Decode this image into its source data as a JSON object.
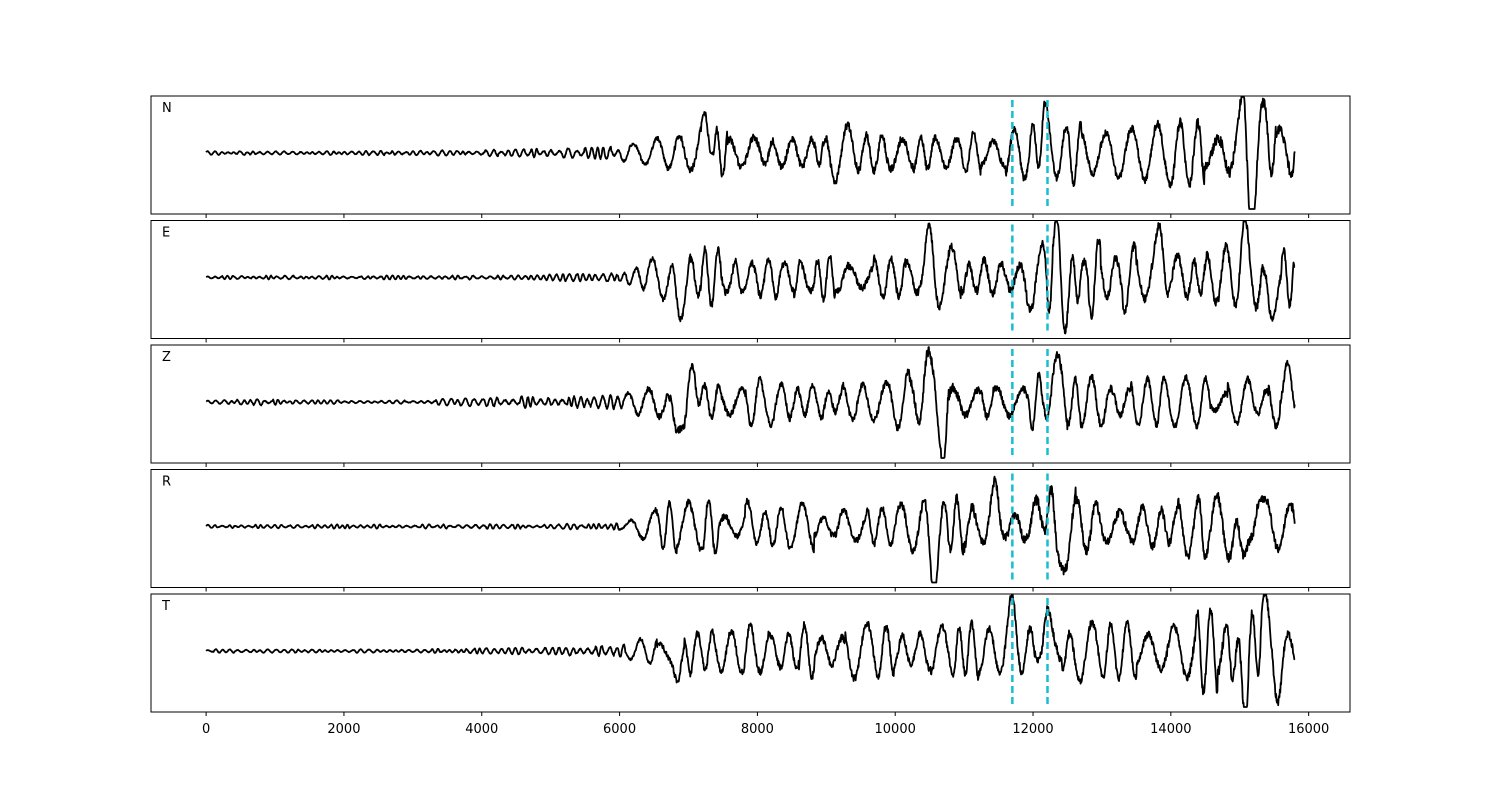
{
  "chart_data": {
    "type": "line",
    "title": "",
    "xlabel": "",
    "ylabel": "",
    "xlim": [
      -800,
      16600
    ],
    "x_ticks": [
      0,
      2000,
      4000,
      6000,
      8000,
      10000,
      12000,
      14000,
      16000
    ],
    "x_tick_labels": [
      "0",
      "2000",
      "4000",
      "6000",
      "8000",
      "10000",
      "12000",
      "14000",
      "16000"
    ],
    "samples": 15800,
    "grid": false,
    "legend": "none",
    "trace_color": "#000000",
    "pick_color": "#17becf",
    "picks": [
      11700,
      12210
    ],
    "panels": [
      {
        "label": "N",
        "envelope": [
          [
            0,
            0.03
          ],
          [
            3000,
            0.035
          ],
          [
            5000,
            0.07
          ],
          [
            6000,
            0.11
          ],
          [
            6500,
            0.3
          ],
          [
            7000,
            0.45
          ],
          [
            8000,
            0.5
          ],
          [
            10000,
            0.55
          ],
          [
            11500,
            0.45
          ],
          [
            12200,
            0.55
          ],
          [
            13500,
            0.5
          ],
          [
            15000,
            0.8
          ],
          [
            15800,
            0.6
          ]
        ],
        "peaks": [
          [
            7250,
            0.63
          ],
          [
            12150,
            0.6
          ],
          [
            15050,
            0.8
          ],
          [
            15200,
            -0.88
          ],
          [
            15400,
            0.63
          ]
        ]
      },
      {
        "label": "E",
        "envelope": [
          [
            0,
            0.03
          ],
          [
            3000,
            0.035
          ],
          [
            5000,
            0.05
          ],
          [
            6000,
            0.1
          ],
          [
            6500,
            0.35
          ],
          [
            7000,
            0.5
          ],
          [
            8000,
            0.45
          ],
          [
            10000,
            0.5
          ],
          [
            11000,
            0.6
          ],
          [
            11700,
            0.6
          ],
          [
            12300,
            0.7
          ],
          [
            14000,
            0.55
          ],
          [
            15000,
            0.6
          ],
          [
            15800,
            0.55
          ]
        ],
        "peaks": [
          [
            6850,
            -0.62
          ],
          [
            10500,
            0.72
          ],
          [
            12350,
            0.88
          ],
          [
            12450,
            -0.75
          ],
          [
            13850,
            0.8
          ],
          [
            15050,
            0.65
          ],
          [
            15450,
            -0.7
          ]
        ]
      },
      {
        "label": "Z",
        "envelope": [
          [
            0,
            0.03
          ],
          [
            900,
            0.06
          ],
          [
            1200,
            0.03
          ],
          [
            3000,
            0.03
          ],
          [
            3800,
            0.07
          ],
          [
            5000,
            0.1
          ],
          [
            6000,
            0.12
          ],
          [
            6500,
            0.45
          ],
          [
            7000,
            0.5
          ],
          [
            8000,
            0.42
          ],
          [
            10000,
            0.45
          ],
          [
            10500,
            0.8
          ],
          [
            11000,
            0.55
          ],
          [
            12000,
            0.5
          ],
          [
            12300,
            0.6
          ],
          [
            14000,
            0.4
          ],
          [
            15800,
            0.45
          ]
        ],
        "peaks": [
          [
            6800,
            -0.62
          ],
          [
            7100,
            0.52
          ],
          [
            10450,
            0.9
          ],
          [
            10650,
            -0.8
          ],
          [
            12300,
            0.68
          ],
          [
            15700,
            0.55
          ]
        ]
      },
      {
        "label": "R",
        "envelope": [
          [
            0,
            0.03
          ],
          [
            3000,
            0.035
          ],
          [
            5000,
            0.04
          ],
          [
            6000,
            0.07
          ],
          [
            6500,
            0.35
          ],
          [
            7000,
            0.5
          ],
          [
            8000,
            0.42
          ],
          [
            10000,
            0.45
          ],
          [
            11000,
            0.7
          ],
          [
            11700,
            0.6
          ],
          [
            12300,
            0.8
          ],
          [
            13500,
            0.55
          ],
          [
            15000,
            0.7
          ],
          [
            15800,
            0.5
          ]
        ],
        "peaks": [
          [
            10550,
            -0.78
          ],
          [
            11450,
            0.55
          ],
          [
            12250,
            0.88
          ],
          [
            12350,
            -0.85
          ],
          [
            15050,
            -0.75
          ],
          [
            15270,
            0.55
          ]
        ]
      },
      {
        "label": "T",
        "envelope": [
          [
            0,
            0.03
          ],
          [
            3000,
            0.03
          ],
          [
            5000,
            0.06
          ],
          [
            6000,
            0.1
          ],
          [
            6500,
            0.3
          ],
          [
            7000,
            0.45
          ],
          [
            8000,
            0.45
          ],
          [
            10000,
            0.5
          ],
          [
            11500,
            0.45
          ],
          [
            12200,
            0.6
          ],
          [
            13500,
            0.45
          ],
          [
            15000,
            0.8
          ],
          [
            15800,
            0.45
          ]
        ],
        "peaks": [
          [
            6850,
            -0.58
          ],
          [
            11700,
            0.65
          ],
          [
            12200,
            0.65
          ],
          [
            15050,
            -0.72
          ],
          [
            15350,
            0.92
          ],
          [
            15550,
            -0.62
          ]
        ]
      }
    ]
  }
}
